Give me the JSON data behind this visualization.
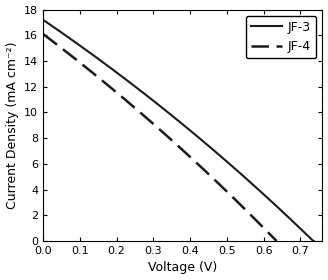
{
  "title": "",
  "xlabel": "Voltage (V)",
  "ylabel": "Current Density (mA cm⁻²)",
  "xlim": [
    0.0,
    0.76
  ],
  "ylim": [
    0,
    18
  ],
  "xticks": [
    0.0,
    0.1,
    0.2,
    0.3,
    0.4,
    0.5,
    0.6,
    0.7
  ],
  "yticks": [
    0,
    2,
    4,
    6,
    8,
    10,
    12,
    14,
    16,
    18
  ],
  "jf3": {
    "Jsc": 17.2,
    "Voc": 0.735,
    "n": 2.5,
    "Rs": 2.0,
    "label": "JF-3",
    "linestyle": "solid",
    "color": "#1a1a1a",
    "linewidth": 1.5
  },
  "jf4": {
    "Jsc": 16.1,
    "Voc": 0.635,
    "n": 2.0,
    "Rs": 2.0,
    "label": "JF-4",
    "linestyle": "dashed",
    "color": "#1a1a1a",
    "linewidth": 1.8
  },
  "legend_loc": "upper right",
  "background_color": "#ffffff",
  "font_size": 9,
  "tick_label_size": 8
}
